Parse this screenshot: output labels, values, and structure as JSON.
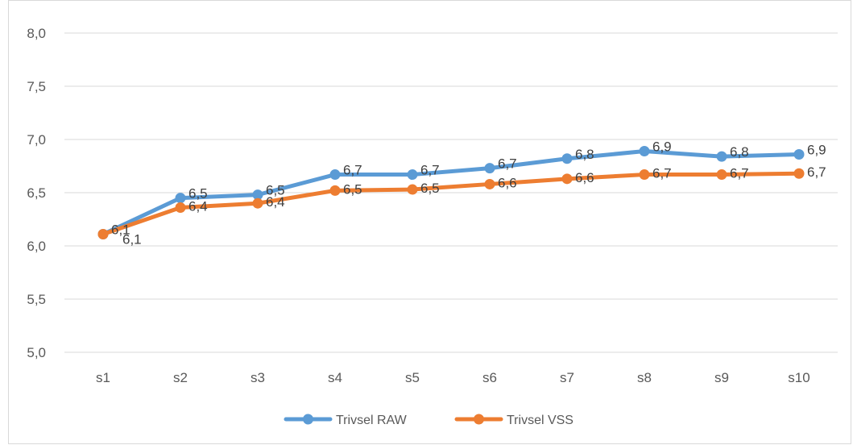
{
  "chart_data": {
    "type": "line",
    "title": "",
    "categories": [
      "s1",
      "s2",
      "s3",
      "s4",
      "s5",
      "s6",
      "s7",
      "s8",
      "s9",
      "s10"
    ],
    "ylim": [
      5.0,
      8.0
    ],
    "yticks": [
      5.0,
      5.5,
      6.0,
      6.5,
      7.0,
      7.5,
      8.0
    ],
    "ytick_labels": [
      "5,0",
      "5,5",
      "6,0",
      "6,5",
      "7,0",
      "7,5",
      "8,0"
    ],
    "grid": true,
    "legend_position": "bottom",
    "series": [
      {
        "name": "Trivsel RAW",
        "color": "#5B9BD5",
        "values": [
          6.11,
          6.45,
          6.48,
          6.67,
          6.67,
          6.73,
          6.82,
          6.89,
          6.84,
          6.86
        ],
        "labels": [
          "6,1",
          "6,5",
          "6,5",
          "6,7",
          "6,7",
          "6,7",
          "6,8",
          "6,9",
          "6,8",
          "6,9"
        ]
      },
      {
        "name": "Trivsel VSS",
        "color": "#ED7D31",
        "values": [
          6.11,
          6.36,
          6.4,
          6.52,
          6.53,
          6.58,
          6.63,
          6.67,
          6.67,
          6.68
        ],
        "labels": [
          "",
          "6,4",
          "6,4",
          "6,5",
          "6,5",
          "6,6",
          "6,6",
          "6,7",
          "6,7",
          "6,7"
        ]
      }
    ],
    "shared_label": "6,1"
  }
}
